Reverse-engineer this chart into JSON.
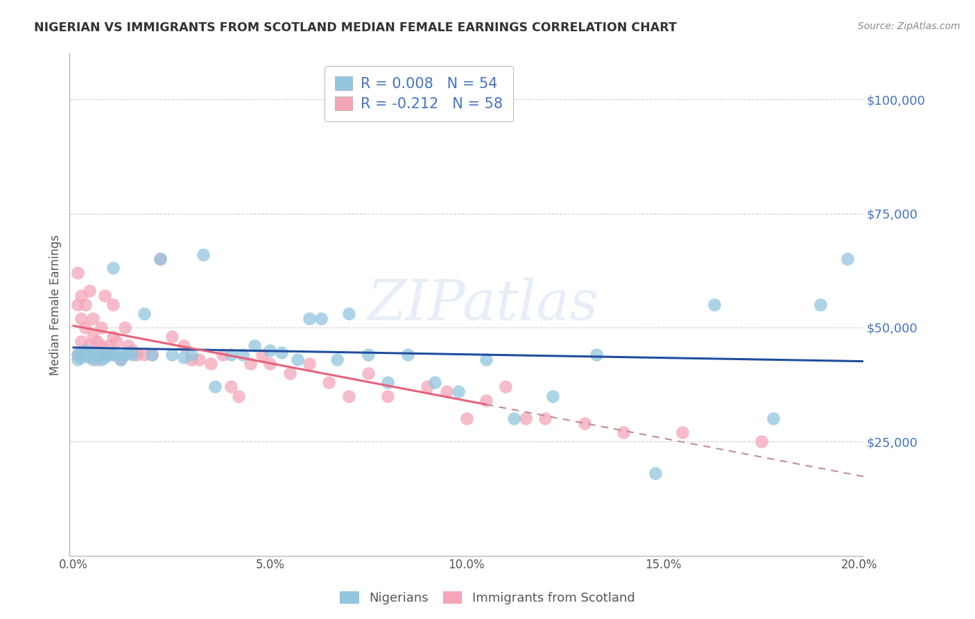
{
  "title": "NIGERIAN VS IMMIGRANTS FROM SCOTLAND MEDIAN FEMALE EARNINGS CORRELATION CHART",
  "source": "Source: ZipAtlas.com",
  "ylabel": "Median Female Earnings",
  "xlim": [
    -0.001,
    0.201
  ],
  "ylim": [
    0,
    110000
  ],
  "yticks": [
    25000,
    50000,
    75000,
    100000
  ],
  "ytick_labels": [
    "$25,000",
    "$50,000",
    "$75,000",
    "$100,000"
  ],
  "xticks": [
    0.0,
    0.05,
    0.1,
    0.15,
    0.2
  ],
  "xtick_labels": [
    "0.0%",
    "5.0%",
    "10.0%",
    "15.0%",
    "20.0%"
  ],
  "watermark": "ZIPatlas",
  "legend_r1": "R = 0.008",
  "legend_n1": "N = 54",
  "legend_r2": "R = -0.212",
  "legend_n2": "N = 58",
  "nigerians_label": "Nigerians",
  "scotland_label": "Immigrants from Scotland",
  "blue_color": "#92C5DE",
  "pink_color": "#F4A6B8",
  "trend_blue_color": "#1F4E9E",
  "trend_pink_solid_color": "#E8607A",
  "trend_pink_dashed_color": "#C09090",
  "axis_tick_color": "#4472C4",
  "title_color": "#333333",
  "grid_color": "#CCCCCC",
  "nigerians_x": [
    0.001,
    0.001,
    0.002,
    0.002,
    0.003,
    0.003,
    0.004,
    0.004,
    0.005,
    0.005,
    0.006,
    0.007,
    0.008,
    0.008,
    0.009,
    0.01,
    0.01,
    0.011,
    0.012,
    0.013,
    0.014,
    0.015,
    0.018,
    0.02,
    0.022,
    0.025,
    0.028,
    0.03,
    0.033,
    0.036,
    0.04,
    0.043,
    0.046,
    0.05,
    0.053,
    0.057,
    0.06,
    0.063,
    0.067,
    0.07,
    0.075,
    0.08,
    0.085,
    0.092,
    0.098,
    0.105,
    0.112,
    0.122,
    0.133,
    0.148,
    0.163,
    0.178,
    0.19,
    0.197
  ],
  "nigerians_y": [
    44000,
    43000,
    44500,
    43500,
    45000,
    44000,
    43500,
    44000,
    43000,
    44500,
    44000,
    43000,
    44000,
    43500,
    44000,
    63000,
    44000,
    44000,
    43000,
    44000,
    44500,
    44000,
    53000,
    44000,
    65000,
    44000,
    43500,
    44000,
    66000,
    37000,
    44000,
    44000,
    46000,
    45000,
    44500,
    43000,
    52000,
    52000,
    43000,
    53000,
    44000,
    38000,
    44000,
    38000,
    36000,
    43000,
    30000,
    35000,
    44000,
    18000,
    55000,
    30000,
    55000,
    65000
  ],
  "scotland_x": [
    0.001,
    0.001,
    0.001,
    0.002,
    0.002,
    0.002,
    0.003,
    0.003,
    0.004,
    0.004,
    0.005,
    0.005,
    0.006,
    0.006,
    0.007,
    0.007,
    0.008,
    0.008,
    0.009,
    0.01,
    0.01,
    0.011,
    0.012,
    0.013,
    0.014,
    0.015,
    0.016,
    0.018,
    0.02,
    0.022,
    0.025,
    0.028,
    0.03,
    0.032,
    0.035,
    0.038,
    0.04,
    0.042,
    0.045,
    0.048,
    0.05,
    0.055,
    0.06,
    0.065,
    0.07,
    0.075,
    0.08,
    0.09,
    0.095,
    0.1,
    0.105,
    0.11,
    0.115,
    0.12,
    0.13,
    0.14,
    0.155,
    0.175
  ],
  "scotland_y": [
    62000,
    55000,
    44000,
    57000,
    52000,
    47000,
    55000,
    50000,
    58000,
    46000,
    52000,
    48000,
    47000,
    43000,
    50000,
    46000,
    57000,
    44000,
    46000,
    55000,
    48000,
    47000,
    43000,
    50000,
    46000,
    45000,
    44000,
    44000,
    44000,
    65000,
    48000,
    46000,
    43000,
    43000,
    42000,
    44000,
    37000,
    35000,
    42000,
    44000,
    42000,
    40000,
    42000,
    38000,
    35000,
    40000,
    35000,
    37000,
    36000,
    30000,
    34000,
    37000,
    30000,
    30000,
    29000,
    27000,
    27000,
    25000
  ]
}
